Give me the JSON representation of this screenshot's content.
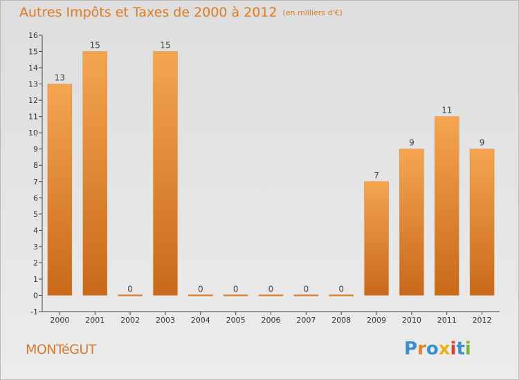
{
  "header": {
    "title": "Autres Impôts et Taxes de 2000 à 2012",
    "subtitle": "(en milliers d'€)"
  },
  "footer": {
    "commune": "MONTéGUT",
    "logo": "Proxiti"
  },
  "colors": {
    "bar_light": "#f5a550",
    "bar_dark": "#c8691a",
    "title": "#e07a22",
    "logo_letters": [
      "#3a8fd1",
      "#e8811f",
      "#3a8fd1",
      "#e8b21f",
      "#e23a2f",
      "#3a8fd1",
      "#7cb342"
    ]
  },
  "chart_data": {
    "type": "bar",
    "categories": [
      "2000",
      "2001",
      "2002",
      "2003",
      "2004",
      "2005",
      "2006",
      "2007",
      "2008",
      "2009",
      "2010",
      "2011",
      "2012"
    ],
    "values": [
      13,
      15,
      0,
      15,
      0,
      0,
      0,
      0,
      0,
      7,
      9,
      11,
      9
    ],
    "data_labels": [
      "13",
      "15",
      "0",
      "15",
      "0",
      "0",
      "0",
      "0",
      "0",
      "7",
      "9",
      "11",
      "9"
    ],
    "title": "Autres Impôts et Taxes de 2000 à 2012",
    "subtitle": "(en milliers d'€)",
    "xlabel": "",
    "ylabel": "",
    "ylim": [
      -1,
      16
    ],
    "yticks": [
      "-1",
      "0",
      "1",
      "2",
      "3",
      "4",
      "5",
      "6",
      "7",
      "8",
      "9",
      "10",
      "11",
      "12",
      "13",
      "14",
      "15",
      "16"
    ],
    "grid": false,
    "legend": "none"
  }
}
